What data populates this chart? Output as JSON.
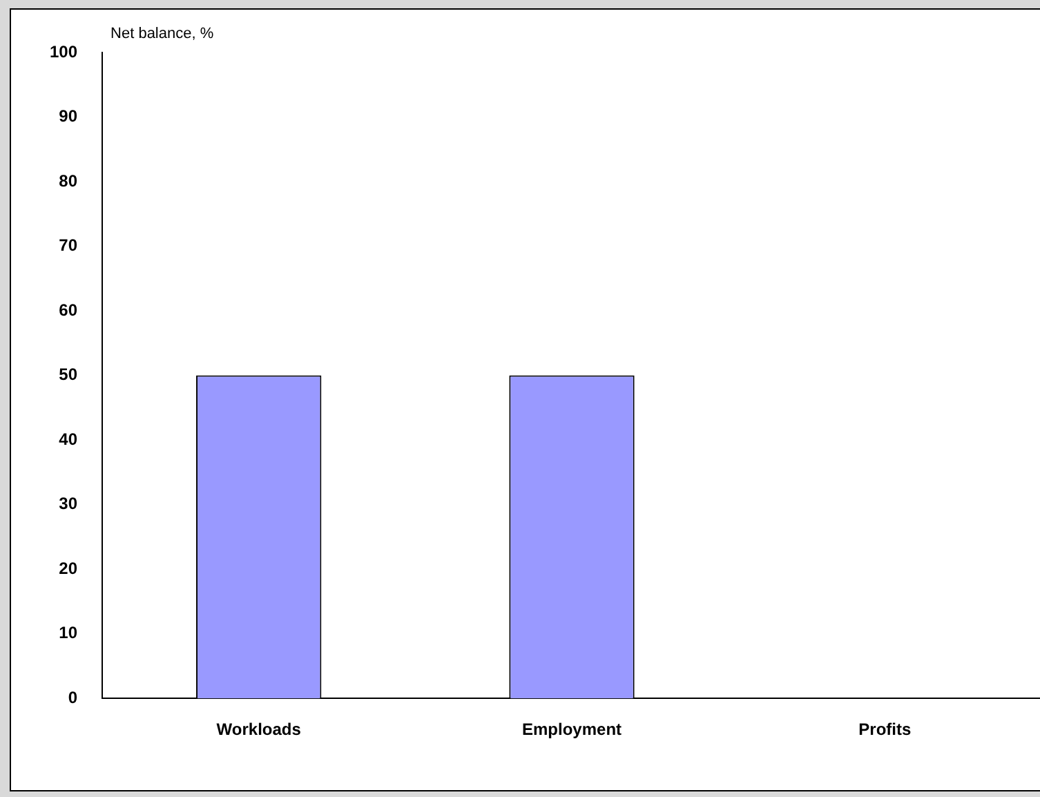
{
  "chart_data": {
    "type": "bar",
    "ylabel": "Net balance, %",
    "categories": [
      "Workloads",
      "Employment",
      "Profits"
    ],
    "values": [
      50,
      50,
      0
    ],
    "color": "#9999ff",
    "ylim": [
      0,
      100
    ],
    "yticks": [
      0,
      10,
      20,
      30,
      40,
      50,
      60,
      70,
      80,
      90,
      100
    ],
    "grid": false,
    "legend": false
  }
}
